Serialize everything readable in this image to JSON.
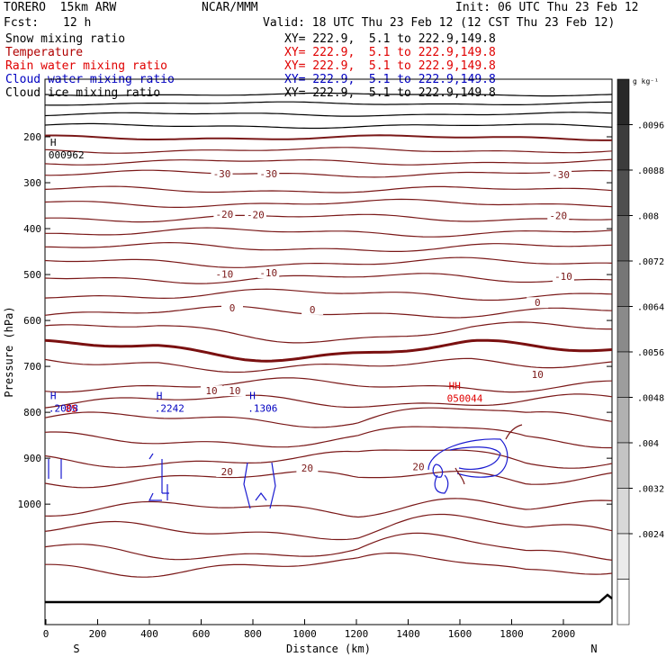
{
  "header": {
    "model": "TORERO  15km ARW",
    "center": "NCAR/MMM",
    "init": "Init: 06 UTC Thu 23 Feb 12",
    "fcst_label": "Fcst:",
    "fcst_value": "12 h",
    "valid": "Valid: 18 UTC Thu 23 Feb 12 (12 CST Thu 23 Feb 12)"
  },
  "fields": [
    {
      "name": "Snow mixing ratio",
      "xy": "XY= 222.9,  5.1 to 222.9,149.8",
      "color": "#000000"
    },
    {
      "name": "Temperature",
      "xy": "XY= 222.9,  5.1 to 222.9,149.8",
      "color": "#b00000"
    },
    {
      "name": "Rain water mixing ratio",
      "xy": "XY= 222.9,  5.1 to 222.9,149.8",
      "color": "#e00000"
    },
    {
      "name": "Cloud water mixing ratio",
      "xy": "XY= 222.9,  5.1 to 222.9,149.8",
      "color": "#0000c0"
    },
    {
      "name": "Cloud ice mixing ratio",
      "xy": "XY= 222.9,  5.1 to 222.9,149.8",
      "color": "#000000"
    }
  ],
  "chart_data": {
    "type": "contour",
    "xlabel": "Distance (km)",
    "ylabel": "Pressure (hPa)",
    "xlim": [
      0,
      2180
    ],
    "ylim": [
      1050,
      100
    ],
    "x_ticks": [
      0,
      200,
      400,
      600,
      800,
      1000,
      1200,
      1400,
      1600,
      1800,
      2000
    ],
    "y_ticks": [
      200,
      300,
      400,
      500,
      600,
      700,
      800,
      900,
      1000
    ],
    "endpoint_labels": {
      "left": "S",
      "right": "N"
    },
    "temperature_labels": [
      {
        "text": "-30",
        "x": 680,
        "p": 284
      },
      {
        "text": "-30",
        "x": 860,
        "p": 284
      },
      {
        "text": "-30",
        "x": 1990,
        "p": 286
      },
      {
        "text": "-20",
        "x": 690,
        "p": 372
      },
      {
        "text": "-20",
        "x": 810,
        "p": 373
      },
      {
        "text": "-20",
        "x": 1980,
        "p": 375
      },
      {
        "text": "-10",
        "x": 690,
        "p": 503
      },
      {
        "text": "-10",
        "x": 860,
        "p": 500
      },
      {
        "text": "-10",
        "x": 2000,
        "p": 508
      },
      {
        "text": "0",
        "x": 720,
        "p": 576
      },
      {
        "text": "0",
        "x": 1030,
        "p": 580
      },
      {
        "text": "0",
        "x": 1900,
        "p": 565
      },
      {
        "text": "10",
        "x": 640,
        "p": 757
      },
      {
        "text": "10",
        "x": 730,
        "p": 757
      },
      {
        "text": "10",
        "x": 1900,
        "p": 721
      },
      {
        "text": "20",
        "x": 700,
        "p": 933
      },
      {
        "text": "20",
        "x": 1010,
        "p": 925
      },
      {
        "text": "20",
        "x": 1440,
        "p": 922
      }
    ],
    "extrema_labels": [
      {
        "marker": "H",
        "value": "000962",
        "x": 10,
        "p": 247,
        "color": "#000000"
      },
      {
        "marker": "H",
        "value": ".2008",
        "x": 10,
        "p": 799,
        "color": "#0000c0"
      },
      {
        "marker": "",
        "value": "85",
        "x": 75,
        "p": 800,
        "color": "#e00000"
      },
      {
        "marker": "H",
        "value": ".2242",
        "x": 420,
        "p": 799,
        "color": "#0000c0"
      },
      {
        "marker": "H",
        "value": ".1306",
        "x": 780,
        "p": 799,
        "color": "#0000c0"
      },
      {
        "marker": "HH",
        "value": "050044",
        "x": 1550,
        "p": 777,
        "color": "#e00000"
      }
    ],
    "colorbar": {
      "units": "g kg⁻¹",
      "levels": [
        ".0096",
        ".0088",
        ".008",
        ".0072",
        ".0064",
        ".0056",
        ".0048",
        ".004",
        ".0032",
        ".0024"
      ]
    }
  }
}
